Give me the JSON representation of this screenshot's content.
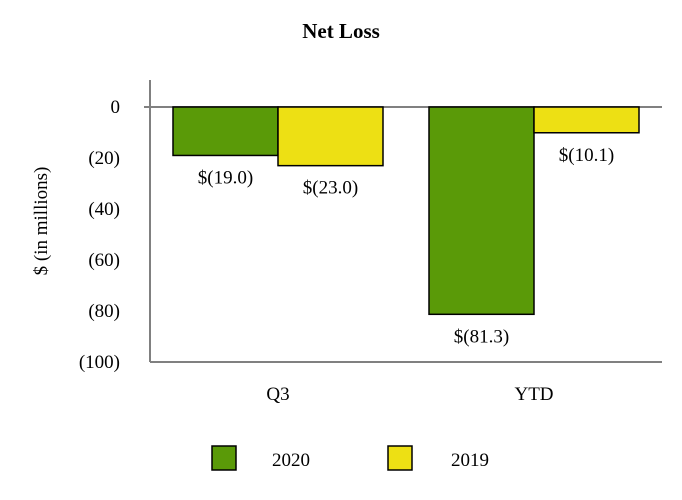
{
  "chart_data": {
    "type": "bar",
    "title": "Net Loss",
    "ylabel": "$ (in millions)",
    "xlabel": "",
    "categories": [
      "Q3",
      "YTD"
    ],
    "ylim": [
      -100,
      0
    ],
    "yticks": [
      0,
      -20,
      -40,
      -60,
      -80,
      -100
    ],
    "ytick_labels": [
      "0",
      "(20)",
      "(40)",
      "(60)",
      "(80)",
      "(100)"
    ],
    "series": [
      {
        "name": "2020",
        "color": "#5a9a08",
        "values": [
          -19.0,
          -81.3
        ],
        "labels": [
          "$(19.0)",
          "$(81.3)"
        ]
      },
      {
        "name": "2019",
        "color": "#ede014",
        "values": [
          -23.0,
          -10.1
        ],
        "labels": [
          "$(23.0)",
          "$(10.1)"
        ]
      }
    ],
    "legend_position": "bottom",
    "grid": false
  }
}
